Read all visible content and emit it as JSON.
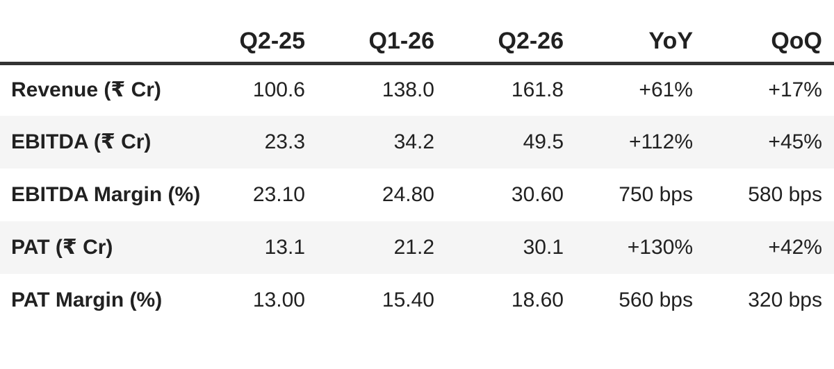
{
  "chart_data": {
    "type": "table",
    "title": "",
    "columns": [
      "",
      "Q2-25",
      "Q1-26",
      "Q2-26",
      "YoY",
      "QoQ"
    ],
    "rows": [
      {
        "label": "Revenue (₹ Cr)",
        "values": [
          "100.6",
          "138.0",
          "161.8",
          "+61%",
          "+17%"
        ]
      },
      {
        "label": "EBITDA (₹ Cr)",
        "values": [
          "23.3",
          "34.2",
          "49.5",
          "+112%",
          "+45%"
        ]
      },
      {
        "label": "EBITDA Margin (%)",
        "values": [
          "23.10",
          "24.80",
          "30.60",
          "750 bps",
          "580 bps"
        ]
      },
      {
        "label": "PAT (₹ Cr)",
        "values": [
          "13.1",
          "21.2",
          "30.1",
          "+130%",
          "+42%"
        ]
      },
      {
        "label": "PAT Margin (%)",
        "values": [
          "13.00",
          "15.40",
          "18.60",
          "560 bps",
          "320 bps"
        ]
      }
    ],
    "layout": {
      "value_alignment": "right",
      "label_alignment": "left",
      "alternating_rows": true,
      "grid": "none",
      "header_rule": "thick-bottom"
    }
  },
  "colors": {
    "text": "#212121",
    "header_rule": "#333333",
    "alt_row_bg": "#f5f5f5",
    "background": "#ffffff"
  }
}
